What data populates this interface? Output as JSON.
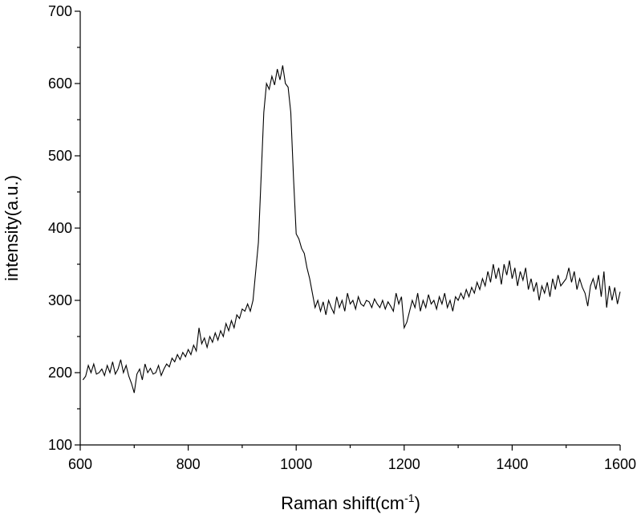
{
  "chart_data": {
    "type": "line",
    "xlabel": "Raman shift(cm",
    "xlabel_sup": "-1",
    "xlabel_end": ")",
    "ylabel": "intensity(a.u.)",
    "color": "#000000",
    "xlim": [
      600,
      1600
    ],
    "xticks": [
      600,
      800,
      1000,
      1200,
      1400,
      1600
    ],
    "ylim": [
      100,
      700
    ],
    "yticks": [
      100,
      200,
      300,
      400,
      500,
      600,
      700
    ],
    "x": [
      605,
      610,
      615,
      620,
      625,
      630,
      635,
      640,
      645,
      650,
      655,
      660,
      665,
      670,
      675,
      680,
      685,
      690,
      695,
      700,
      705,
      710,
      715,
      720,
      725,
      730,
      735,
      740,
      745,
      750,
      755,
      760,
      765,
      770,
      775,
      780,
      785,
      790,
      795,
      800,
      805,
      810,
      815,
      820,
      825,
      830,
      835,
      840,
      845,
      850,
      855,
      860,
      865,
      870,
      875,
      880,
      885,
      890,
      895,
      900,
      905,
      910,
      915,
      920,
      925,
      930,
      935,
      940,
      945,
      950,
      955,
      960,
      965,
      970,
      975,
      980,
      985,
      990,
      995,
      1000,
      1005,
      1010,
      1015,
      1020,
      1025,
      1030,
      1035,
      1040,
      1045,
      1050,
      1055,
      1060,
      1065,
      1070,
      1075,
      1080,
      1085,
      1090,
      1095,
      1100,
      1105,
      1110,
      1115,
      1120,
      1125,
      1130,
      1135,
      1140,
      1145,
      1150,
      1155,
      1160,
      1165,
      1170,
      1175,
      1180,
      1185,
      1190,
      1195,
      1200,
      1205,
      1210,
      1215,
      1220,
      1225,
      1230,
      1235,
      1240,
      1245,
      1250,
      1255,
      1260,
      1265,
      1270,
      1275,
      1280,
      1285,
      1290,
      1295,
      1300,
      1305,
      1310,
      1315,
      1320,
      1325,
      1330,
      1335,
      1340,
      1345,
      1350,
      1355,
      1360,
      1365,
      1370,
      1375,
      1380,
      1385,
      1390,
      1395,
      1400,
      1405,
      1410,
      1415,
      1420,
      1425,
      1430,
      1435,
      1440,
      1445,
      1450,
      1455,
      1460,
      1465,
      1470,
      1475,
      1480,
      1485,
      1490,
      1495,
      1500,
      1505,
      1510,
      1515,
      1520,
      1525,
      1530,
      1535,
      1540,
      1545,
      1550,
      1555,
      1560,
      1565,
      1570,
      1575,
      1580,
      1585,
      1590,
      1595,
      1600
    ],
    "values": [
      190,
      195,
      210,
      200,
      212,
      198,
      200,
      205,
      196,
      210,
      200,
      215,
      198,
      205,
      218,
      200,
      210,
      195,
      185,
      172,
      198,
      205,
      190,
      212,
      200,
      206,
      198,
      200,
      210,
      196,
      205,
      212,
      208,
      220,
      215,
      225,
      218,
      228,
      222,
      232,
      225,
      238,
      230,
      262,
      240,
      248,
      235,
      250,
      242,
      255,
      245,
      258,
      250,
      268,
      258,
      272,
      262,
      280,
      275,
      288,
      285,
      295,
      285,
      300,
      340,
      380,
      470,
      560,
      600,
      592,
      610,
      598,
      620,
      605,
      625,
      600,
      595,
      560,
      470,
      392,
      385,
      372,
      365,
      345,
      330,
      310,
      290,
      300,
      285,
      298,
      280,
      300,
      290,
      282,
      305,
      290,
      300,
      285,
      310,
      295,
      300,
      288,
      305,
      295,
      292,
      300,
      298,
      290,
      302,
      295,
      290,
      300,
      288,
      298,
      292,
      285,
      310,
      295,
      305,
      262,
      270,
      285,
      300,
      290,
      310,
      285,
      300,
      290,
      308,
      295,
      300,
      288,
      305,
      295,
      310,
      290,
      300,
      285,
      305,
      300,
      310,
      302,
      315,
      305,
      318,
      310,
      325,
      315,
      330,
      320,
      340,
      325,
      350,
      330,
      345,
      322,
      350,
      335,
      355,
      330,
      345,
      320,
      340,
      328,
      345,
      315,
      330,
      312,
      325,
      300,
      320,
      310,
      325,
      305,
      330,
      315,
      335,
      320,
      325,
      330,
      345,
      325,
      340,
      315,
      330,
      318,
      310,
      292,
      320,
      330,
      315,
      335,
      305,
      340,
      290,
      320,
      300,
      318,
      295,
      312
    ]
  }
}
